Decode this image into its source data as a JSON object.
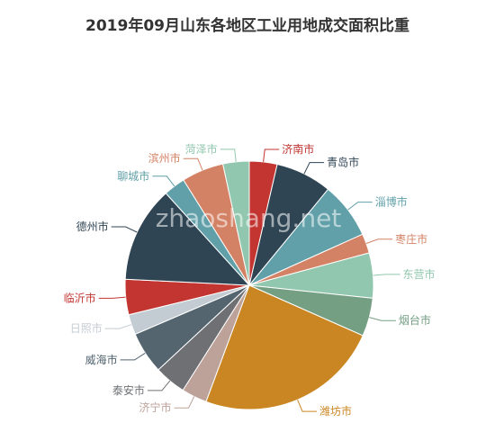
{
  "chart_data": {
    "type": "pie",
    "title": "2019年09月山东各地区工业用地成交面积比重",
    "watermark": "zhaoshang.net",
    "slices": [
      {
        "label": "济南市",
        "value": 3.7,
        "color": "#c23531"
      },
      {
        "label": "青岛市",
        "value": 7.5,
        "color": "#2f4554"
      },
      {
        "label": "淄博市",
        "value": 7.5,
        "color": "#61a0a8"
      },
      {
        "label": "枣庄市",
        "value": 2.6,
        "color": "#d48265"
      },
      {
        "label": "东营市",
        "value": 6.0,
        "color": "#91c7ae"
      },
      {
        "label": "烟台市",
        "value": 5.1,
        "color": "#749f83"
      },
      {
        "label": "潍坊市",
        "value": 24.6,
        "color": "#ca8622"
      },
      {
        "label": "济宁市",
        "value": 3.4,
        "color": "#bda29a"
      },
      {
        "label": "泰安市",
        "value": 4.2,
        "color": "#6e7074"
      },
      {
        "label": "威海市",
        "value": 5.6,
        "color": "#546570"
      },
      {
        "label": "日照市",
        "value": 2.7,
        "color": "#c4ccd3"
      },
      {
        "label": "临沂市",
        "value": 4.7,
        "color": "#c23531"
      },
      {
        "label": "德州市",
        "value": 12.8,
        "color": "#2f4554"
      },
      {
        "label": "聊城市",
        "value": 2.9,
        "color": "#61a0a8"
      },
      {
        "label": "滨州市",
        "value": 5.6,
        "color": "#d48265"
      },
      {
        "label": "菏泽市",
        "value": 3.5,
        "color": "#91c7ae"
      }
    ]
  }
}
